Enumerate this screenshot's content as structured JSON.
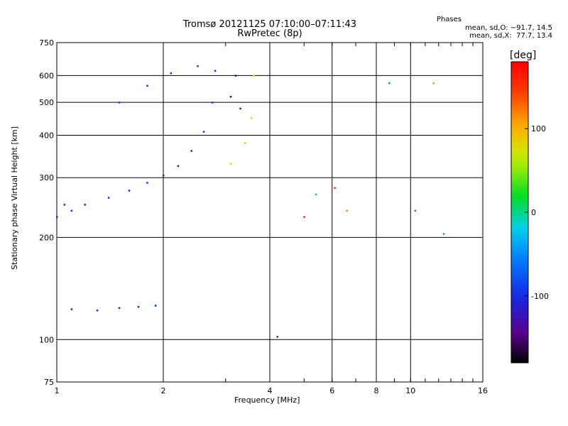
{
  "header": {
    "title_line1": "Tromsø 20121125 07:10:00–07:11:43",
    "title_line2": "RwPretec (8p)",
    "phase_title": "Phases",
    "phase_line1": "mean, sd,O: −91.7, 14.5",
    "phase_line2": "mean, sd,X:  77.7, 13.4"
  },
  "colorbar": {
    "title": "[deg]",
    "ticks": [
      100,
      0,
      -100
    ],
    "range": [
      -180,
      180
    ]
  },
  "chart_data": {
    "type": "scatter",
    "xlabel": "Frequency [MHz]",
    "ylabel": "Stationary phase Virtual Height [km]",
    "x_scale": "log",
    "y_scale": "log",
    "xlim": [
      1,
      16
    ],
    "ylim": [
      75,
      750
    ],
    "x_major_ticks": [
      1,
      2,
      4,
      6,
      8,
      10,
      16
    ],
    "x_tick_labels": [
      "1",
      "2",
      "4",
      "6",
      "8",
      "10",
      "16"
    ],
    "y_ticks": [
      75,
      100,
      200,
      300,
      400,
      500,
      600,
      750
    ],
    "y_tick_labels": [
      "75",
      "100",
      "200",
      "300",
      "400",
      "500",
      "600",
      "750"
    ],
    "grid": true,
    "color_encoding": "phase in degrees",
    "series": [
      {
        "values": [
          {
            "x": 1.0,
            "y": 230,
            "phase": -100
          },
          {
            "x": 1.05,
            "y": 250,
            "phase": -95
          },
          {
            "x": 1.1,
            "y": 240,
            "phase": -105
          },
          {
            "x": 1.2,
            "y": 250,
            "phase": -100
          },
          {
            "x": 1.4,
            "y": 262,
            "phase": -110
          },
          {
            "x": 1.6,
            "y": 275,
            "phase": -100
          },
          {
            "x": 1.8,
            "y": 290,
            "phase": -95
          },
          {
            "x": 2.0,
            "y": 305,
            "phase": -100
          },
          {
            "x": 2.2,
            "y": 325,
            "phase": -110
          },
          {
            "x": 2.4,
            "y": 360,
            "phase": -100
          },
          {
            "x": 2.6,
            "y": 410,
            "phase": -105
          },
          {
            "x": 2.75,
            "y": 500,
            "phase": -100
          },
          {
            "x": 2.8,
            "y": 620,
            "phase": -95
          },
          {
            "x": 1.1,
            "y": 123,
            "phase": -100
          },
          {
            "x": 1.3,
            "y": 122,
            "phase": -105
          },
          {
            "x": 1.5,
            "y": 124,
            "phase": -100
          },
          {
            "x": 1.7,
            "y": 125,
            "phase": -110
          },
          {
            "x": 1.9,
            "y": 126,
            "phase": -100
          },
          {
            "x": 1.5,
            "y": 500,
            "phase": -100
          },
          {
            "x": 1.8,
            "y": 560,
            "phase": -105
          },
          {
            "x": 2.1,
            "y": 610,
            "phase": -100
          },
          {
            "x": 2.5,
            "y": 640,
            "phase": -95
          },
          {
            "x": 3.1,
            "y": 520,
            "phase": -140
          },
          {
            "x": 3.2,
            "y": 600,
            "phase": -150
          },
          {
            "x": 3.3,
            "y": 480,
            "phase": -135
          },
          {
            "x": 3.1,
            "y": 330,
            "phase": 85
          },
          {
            "x": 3.4,
            "y": 380,
            "phase": 90
          },
          {
            "x": 3.55,
            "y": 450,
            "phase": 80
          },
          {
            "x": 3.6,
            "y": 600,
            "phase": 75
          },
          {
            "x": 4.2,
            "y": 102,
            "phase": -110
          },
          {
            "x": 5.0,
            "y": 230,
            "phase": 160
          },
          {
            "x": 5.4,
            "y": 268,
            "phase": -20
          },
          {
            "x": 6.1,
            "y": 280,
            "phase": 150
          },
          {
            "x": 6.6,
            "y": 240,
            "phase": 120
          },
          {
            "x": 8.7,
            "y": 570,
            "phase": -50
          },
          {
            "x": 10.3,
            "y": 240,
            "phase": -60
          },
          {
            "x": 11.6,
            "y": 570,
            "phase": 110
          },
          {
            "x": 12.4,
            "y": 205,
            "phase": -40
          }
        ]
      }
    ]
  }
}
